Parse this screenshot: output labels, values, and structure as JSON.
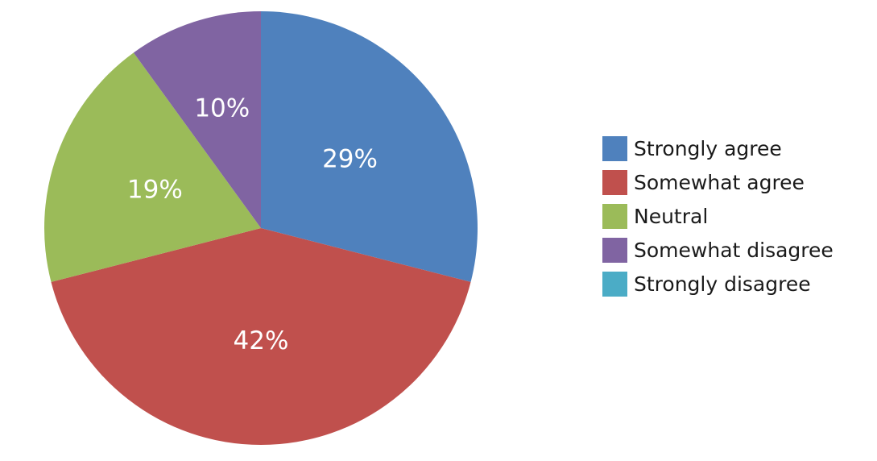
{
  "chart_data": {
    "type": "pie",
    "title": "",
    "legend_position": "right",
    "categories": [
      "Strongly agree",
      "Somewhat agree",
      "Neutral",
      "Somewhat disagree",
      "Strongly disagree"
    ],
    "values": [
      29,
      42,
      19,
      10,
      0
    ],
    "value_labels": [
      "29%",
      "42%",
      "19%",
      "10%",
      ""
    ],
    "colors": [
      "#4f81bd",
      "#c0504d",
      "#9bbb59",
      "#8064a2",
      "#4bacc6"
    ]
  }
}
